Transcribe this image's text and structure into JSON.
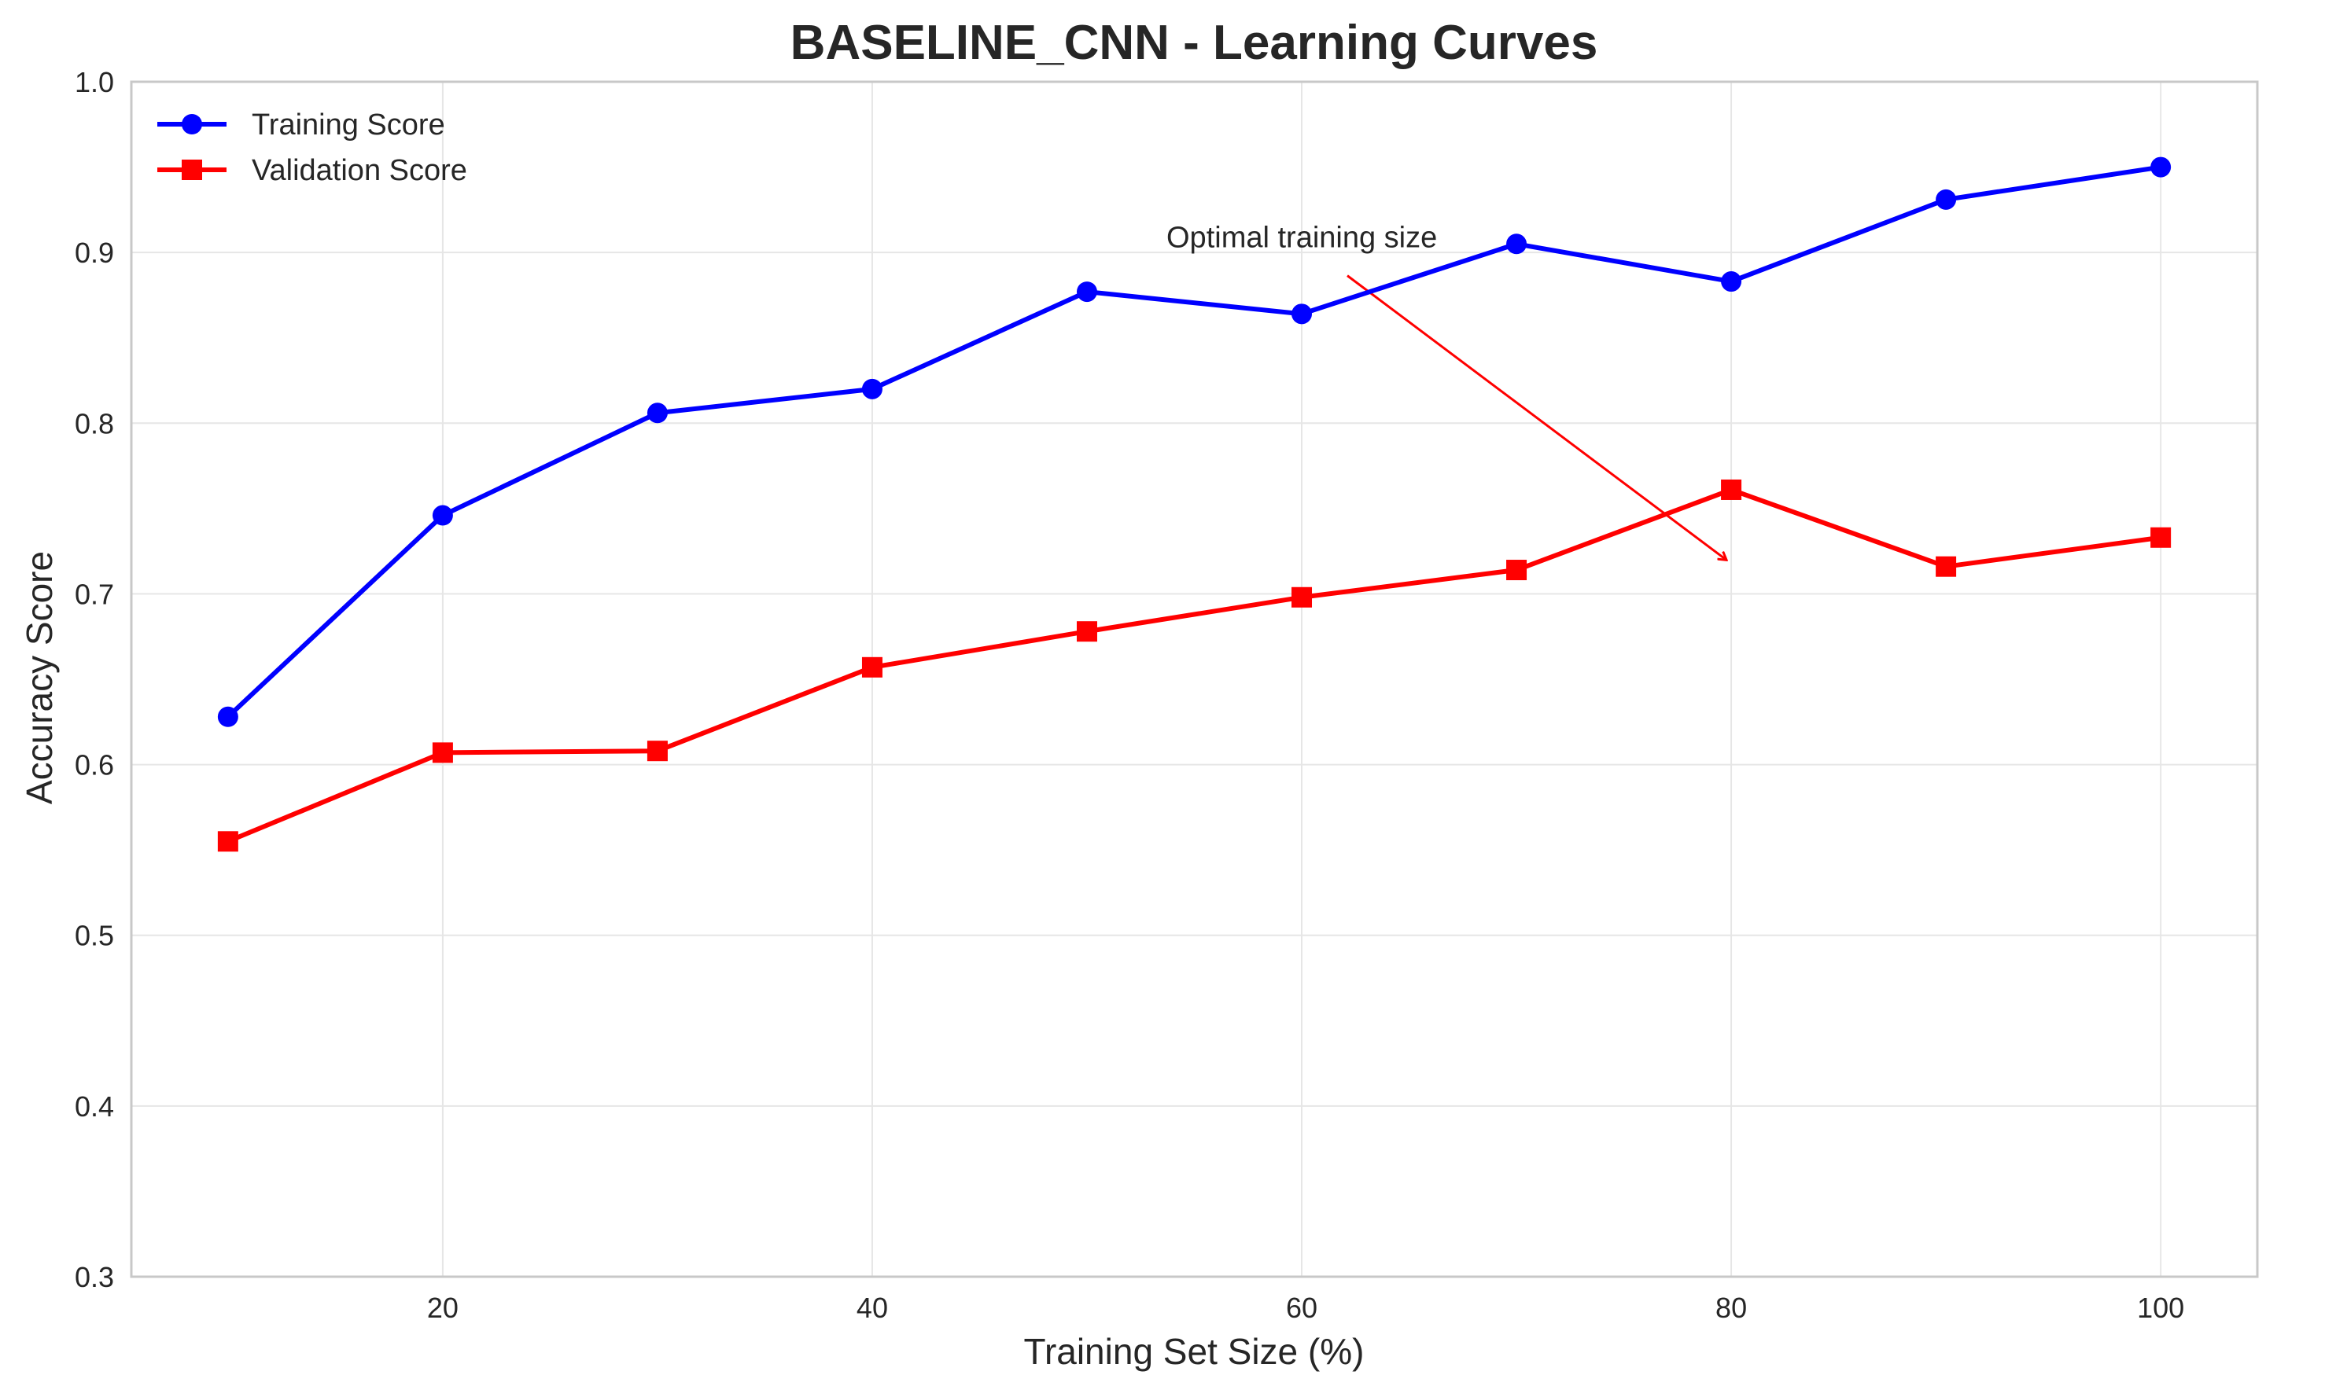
{
  "chart_data": {
    "type": "line",
    "title": "BASELINE_CNN - Learning Curves",
    "xlabel": "Training Set Size (%)",
    "ylabel": "Accuracy Score",
    "x": [
      10,
      20,
      30,
      40,
      50,
      60,
      70,
      80,
      90,
      100
    ],
    "xlim": [
      5.5,
      104.5
    ],
    "ylim": [
      0.3,
      1.0
    ],
    "xticks": [
      20,
      40,
      60,
      80,
      100
    ],
    "yticks": [
      0.3,
      0.4,
      0.5,
      0.6,
      0.7,
      0.8,
      0.9,
      1.0
    ],
    "xtick_labels": [
      "20",
      "40",
      "60",
      "80",
      "100"
    ],
    "ytick_labels": [
      "0.3",
      "0.4",
      "0.5",
      "0.6",
      "0.7",
      "0.8",
      "0.9",
      "1.0"
    ],
    "grid": true,
    "legend_position": "top-left",
    "series": [
      {
        "name": "Training Score",
        "color": "#0000ff",
        "marker": "circle",
        "values": [
          0.628,
          0.746,
          0.806,
          0.82,
          0.877,
          0.864,
          0.905,
          0.883,
          0.931,
          0.95
        ]
      },
      {
        "name": "Validation Score",
        "color": "#ff0000",
        "marker": "square",
        "values": [
          0.555,
          0.607,
          0.608,
          0.657,
          0.678,
          0.698,
          0.714,
          0.761,
          0.716,
          0.733
        ]
      }
    ],
    "annotations": [
      {
        "text": "Optimal training size",
        "text_x": 53.7,
        "text_y": 0.903,
        "arrow_x": 80,
        "arrow_y": 0.718,
        "color": "#ff0000"
      }
    ]
  }
}
